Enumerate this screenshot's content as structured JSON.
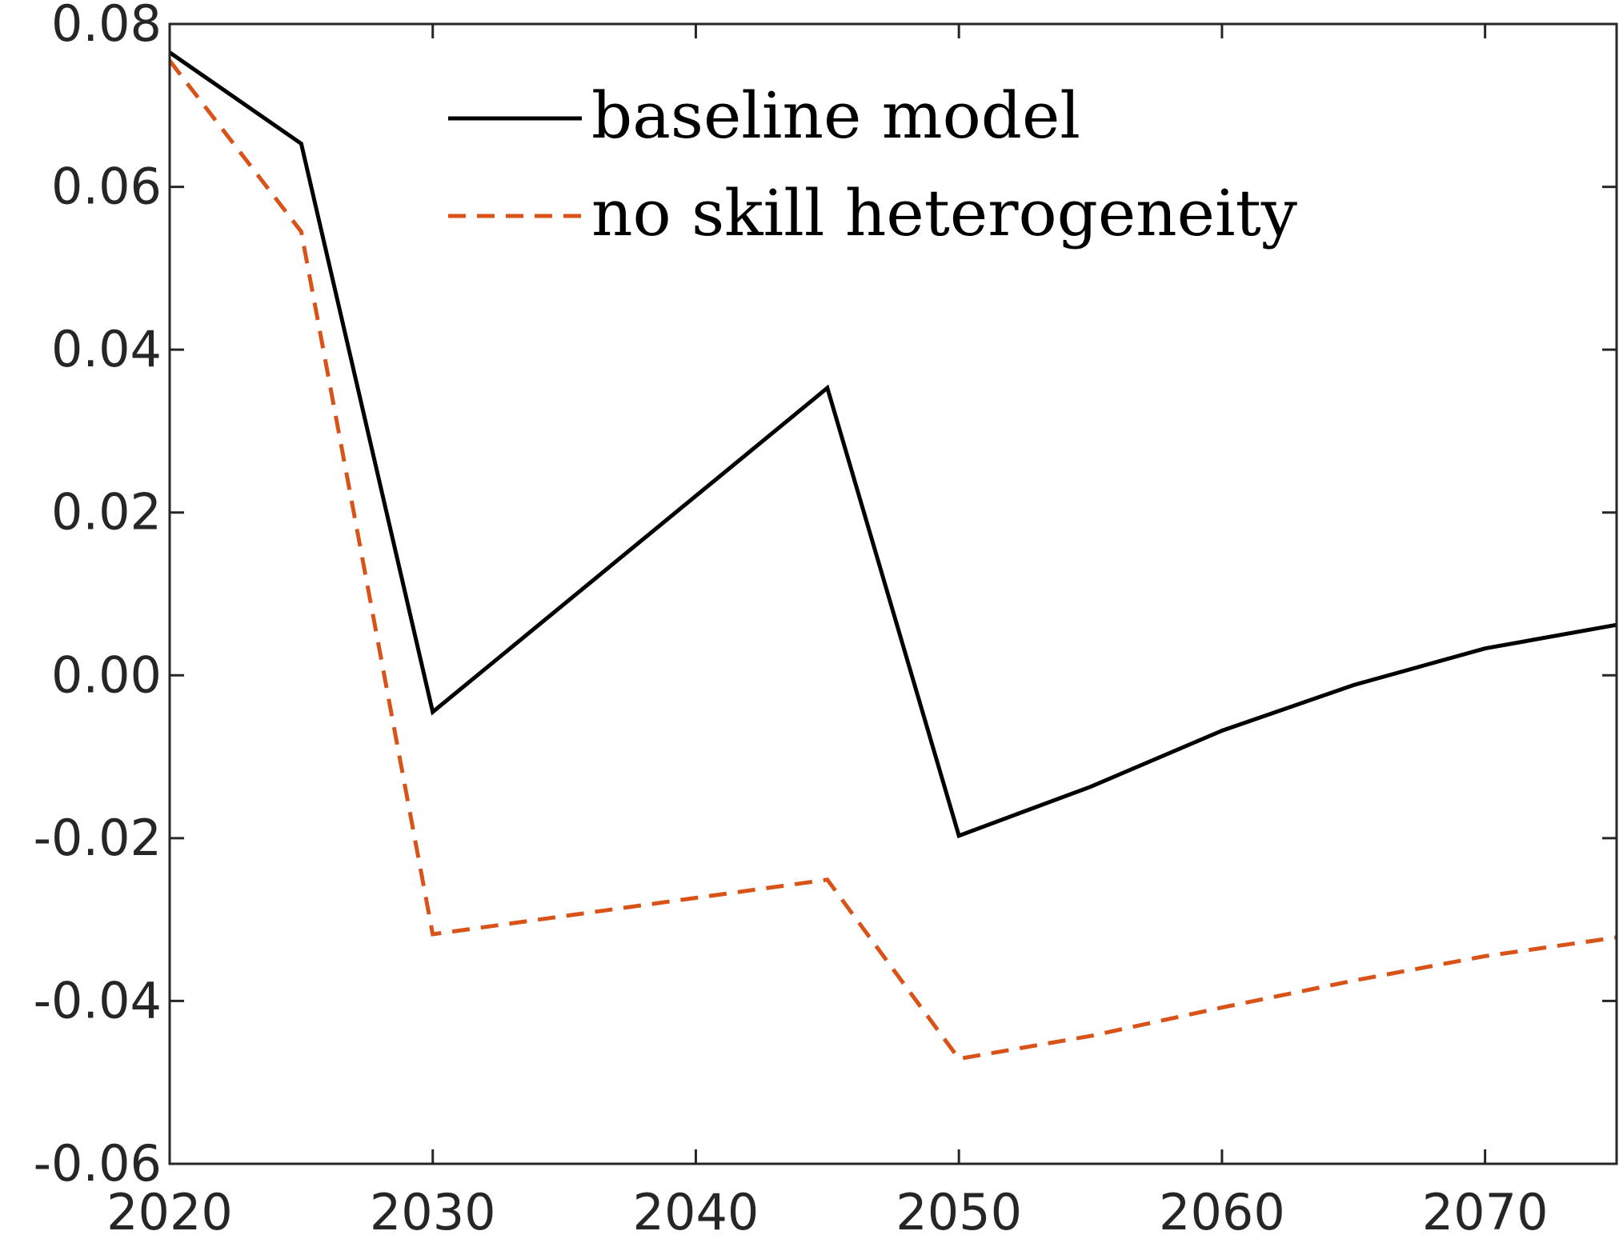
{
  "chart_data": {
    "type": "line",
    "title": "",
    "xlabel": "",
    "ylabel": "",
    "xlim": [
      2020,
      2075
    ],
    "ylim": [
      -0.06,
      0.08
    ],
    "x_ticks": [
      2020,
      2030,
      2040,
      2050,
      2060,
      2070
    ],
    "y_ticks": [
      -0.06,
      -0.04,
      -0.02,
      0.0,
      0.02,
      0.04,
      0.06,
      0.08
    ],
    "y_tick_labels": [
      "-0.06",
      "-0.04",
      "-0.02",
      "0.00",
      "0.02",
      "0.04",
      "0.06",
      "0.08"
    ],
    "grid": false,
    "legend_position": "top-center",
    "series": [
      {
        "name": "baseline model",
        "color": "#000000",
        "style": "solid",
        "x": [
          2020,
          2025,
          2030,
          2045,
          2050,
          2055,
          2060,
          2065,
          2070,
          2075
        ],
        "y": [
          0.0765,
          0.0653,
          -0.0045,
          0.0353,
          -0.0197,
          -0.0137,
          -0.0068,
          -0.0012,
          0.0033,
          0.0062
        ]
      },
      {
        "name": "no skill heterogeneity",
        "color": "#d95319",
        "style": "dashed",
        "x": [
          2020,
          2025,
          2030,
          2045,
          2050,
          2055,
          2060,
          2065,
          2070,
          2075
        ],
        "y": [
          0.0755,
          0.0545,
          -0.0318,
          -0.0251,
          -0.0471,
          -0.0443,
          -0.0408,
          -0.0375,
          -0.0345,
          -0.0322
        ]
      }
    ]
  }
}
